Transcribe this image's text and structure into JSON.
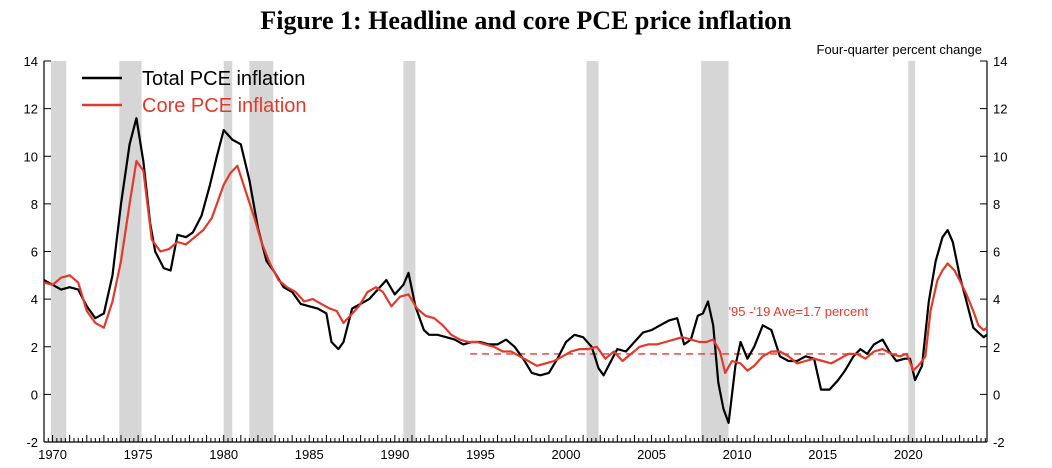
{
  "chart_data": {
    "type": "line",
    "title": "Figure 1:  Headline and core PCE price inflation",
    "subtitle": "Four-quarter percent change",
    "ylim": [
      -2,
      14
    ],
    "yticks": [
      -2,
      0,
      2,
      4,
      6,
      8,
      10,
      12,
      14
    ],
    "xlim": [
      1969.5,
      2024.6
    ],
    "xticks": [
      1970,
      1975,
      1980,
      1985,
      1990,
      1995,
      2000,
      2005,
      2010,
      2015,
      2020
    ],
    "legend": {
      "placement": "top-left"
    },
    "recessions": [
      [
        1969.9,
        1970.8
      ],
      [
        1973.9,
        1975.2
      ],
      [
        1980.0,
        1980.5
      ],
      [
        1981.5,
        1982.9
      ],
      [
        1990.5,
        1991.2
      ],
      [
        2001.2,
        2001.9
      ],
      [
        2007.9,
        2009.5
      ],
      [
        2020.0,
        2020.4
      ]
    ],
    "series": [
      {
        "name": "Total PCE inflation",
        "color": "#000000",
        "points": [
          [
            1969.5,
            4.8
          ],
          [
            1970.0,
            4.6
          ],
          [
            1970.5,
            4.4
          ],
          [
            1971.0,
            4.5
          ],
          [
            1971.5,
            4.4
          ],
          [
            1972.0,
            3.7
          ],
          [
            1972.5,
            3.2
          ],
          [
            1973.0,
            3.4
          ],
          [
            1973.5,
            5.0
          ],
          [
            1974.0,
            8.0
          ],
          [
            1974.5,
            10.5
          ],
          [
            1974.9,
            11.6
          ],
          [
            1975.3,
            9.8
          ],
          [
            1975.7,
            7.2
          ],
          [
            1976.0,
            6.0
          ],
          [
            1976.5,
            5.3
          ],
          [
            1976.9,
            5.2
          ],
          [
            1977.3,
            6.7
          ],
          [
            1977.8,
            6.6
          ],
          [
            1978.2,
            6.8
          ],
          [
            1978.7,
            7.5
          ],
          [
            1979.2,
            8.8
          ],
          [
            1979.6,
            10.0
          ],
          [
            1980.0,
            11.1
          ],
          [
            1980.5,
            10.7
          ],
          [
            1981.0,
            10.5
          ],
          [
            1981.5,
            9.0
          ],
          [
            1982.0,
            7.0
          ],
          [
            1982.5,
            5.6
          ],
          [
            1983.0,
            5.1
          ],
          [
            1983.5,
            4.5
          ],
          [
            1984.0,
            4.3
          ],
          [
            1984.5,
            3.8
          ],
          [
            1985.0,
            3.7
          ],
          [
            1985.5,
            3.6
          ],
          [
            1986.0,
            3.4
          ],
          [
            1986.3,
            2.2
          ],
          [
            1986.7,
            1.9
          ],
          [
            1987.0,
            2.2
          ],
          [
            1987.5,
            3.6
          ],
          [
            1988.0,
            3.8
          ],
          [
            1988.5,
            4.0
          ],
          [
            1989.0,
            4.4
          ],
          [
            1989.5,
            4.8
          ],
          [
            1990.0,
            4.2
          ],
          [
            1990.5,
            4.6
          ],
          [
            1990.8,
            5.1
          ],
          [
            1991.2,
            3.7
          ],
          [
            1991.7,
            2.7
          ],
          [
            1992.0,
            2.5
          ],
          [
            1992.5,
            2.5
          ],
          [
            1993.0,
            2.4
          ],
          [
            1993.5,
            2.3
          ],
          [
            1994.0,
            2.1
          ],
          [
            1994.5,
            2.2
          ],
          [
            1995.0,
            2.2
          ],
          [
            1995.5,
            2.1
          ],
          [
            1996.0,
            2.1
          ],
          [
            1996.5,
            2.3
          ],
          [
            1997.0,
            2.0
          ],
          [
            1997.5,
            1.5
          ],
          [
            1998.0,
            0.9
          ],
          [
            1998.5,
            0.8
          ],
          [
            1999.0,
            0.9
          ],
          [
            1999.5,
            1.5
          ],
          [
            2000.0,
            2.2
          ],
          [
            2000.5,
            2.5
          ],
          [
            2001.0,
            2.4
          ],
          [
            2001.5,
            2.0
          ],
          [
            2001.9,
            1.1
          ],
          [
            2002.2,
            0.8
          ],
          [
            2002.7,
            1.5
          ],
          [
            2003.0,
            1.9
          ],
          [
            2003.5,
            1.8
          ],
          [
            2004.0,
            2.2
          ],
          [
            2004.5,
            2.6
          ],
          [
            2005.0,
            2.7
          ],
          [
            2005.5,
            2.9
          ],
          [
            2006.0,
            3.1
          ],
          [
            2006.5,
            3.2
          ],
          [
            2006.9,
            2.1
          ],
          [
            2007.3,
            2.3
          ],
          [
            2007.7,
            3.3
          ],
          [
            2008.0,
            3.4
          ],
          [
            2008.3,
            3.9
          ],
          [
            2008.6,
            2.9
          ],
          [
            2008.9,
            0.5
          ],
          [
            2009.2,
            -0.6
          ],
          [
            2009.5,
            -1.2
          ],
          [
            2009.9,
            1.2
          ],
          [
            2010.2,
            2.2
          ],
          [
            2010.6,
            1.5
          ],
          [
            2011.0,
            2.0
          ],
          [
            2011.5,
            2.9
          ],
          [
            2012.0,
            2.7
          ],
          [
            2012.5,
            1.6
          ],
          [
            2013.0,
            1.4
          ],
          [
            2013.5,
            1.4
          ],
          [
            2014.0,
            1.6
          ],
          [
            2014.5,
            1.5
          ],
          [
            2014.9,
            0.2
          ],
          [
            2015.4,
            0.2
          ],
          [
            2015.9,
            0.6
          ],
          [
            2016.3,
            1.0
          ],
          [
            2016.8,
            1.6
          ],
          [
            2017.2,
            1.9
          ],
          [
            2017.6,
            1.7
          ],
          [
            2018.0,
            2.1
          ],
          [
            2018.5,
            2.3
          ],
          [
            2018.9,
            1.8
          ],
          [
            2019.3,
            1.4
          ],
          [
            2019.8,
            1.5
          ],
          [
            2020.1,
            1.5
          ],
          [
            2020.4,
            0.6
          ],
          [
            2020.8,
            1.2
          ],
          [
            2021.2,
            3.9
          ],
          [
            2021.6,
            5.6
          ],
          [
            2022.0,
            6.6
          ],
          [
            2022.3,
            6.9
          ],
          [
            2022.6,
            6.4
          ],
          [
            2023.0,
            5.0
          ],
          [
            2023.4,
            3.9
          ],
          [
            2023.8,
            2.8
          ],
          [
            2024.1,
            2.6
          ],
          [
            2024.4,
            2.4
          ],
          [
            2024.6,
            2.5
          ]
        ]
      },
      {
        "name": "Core PCE inflation",
        "color": "#e03a2c",
        "points": [
          [
            1969.5,
            4.7
          ],
          [
            1970.0,
            4.6
          ],
          [
            1970.5,
            4.9
          ],
          [
            1971.0,
            5.0
          ],
          [
            1971.5,
            4.7
          ],
          [
            1972.0,
            3.5
          ],
          [
            1972.5,
            3.0
          ],
          [
            1973.0,
            2.8
          ],
          [
            1973.5,
            3.9
          ],
          [
            1974.0,
            5.6
          ],
          [
            1974.5,
            8.0
          ],
          [
            1974.9,
            9.8
          ],
          [
            1975.3,
            9.4
          ],
          [
            1975.8,
            6.5
          ],
          [
            1976.3,
            6.0
          ],
          [
            1976.8,
            6.1
          ],
          [
            1977.3,
            6.4
          ],
          [
            1977.8,
            6.3
          ],
          [
            1978.3,
            6.6
          ],
          [
            1978.8,
            6.9
          ],
          [
            1979.3,
            7.4
          ],
          [
            1979.7,
            8.2
          ],
          [
            1980.0,
            8.8
          ],
          [
            1980.4,
            9.3
          ],
          [
            1980.8,
            9.6
          ],
          [
            1981.3,
            8.5
          ],
          [
            1981.8,
            7.4
          ],
          [
            1982.2,
            6.4
          ],
          [
            1982.7,
            5.5
          ],
          [
            1983.2,
            4.8
          ],
          [
            1983.7,
            4.5
          ],
          [
            1984.2,
            4.3
          ],
          [
            1984.7,
            3.9
          ],
          [
            1985.2,
            4.0
          ],
          [
            1985.7,
            3.8
          ],
          [
            1986.2,
            3.6
          ],
          [
            1986.6,
            3.5
          ],
          [
            1987.0,
            3.0
          ],
          [
            1987.4,
            3.3
          ],
          [
            1987.9,
            3.7
          ],
          [
            1988.4,
            4.3
          ],
          [
            1988.9,
            4.5
          ],
          [
            1989.3,
            4.3
          ],
          [
            1989.8,
            3.7
          ],
          [
            1990.3,
            4.1
          ],
          [
            1990.8,
            4.2
          ],
          [
            1991.3,
            3.6
          ],
          [
            1991.8,
            3.3
          ],
          [
            1992.3,
            3.2
          ],
          [
            1992.8,
            2.9
          ],
          [
            1993.3,
            2.5
          ],
          [
            1993.8,
            2.3
          ],
          [
            1994.3,
            2.2
          ],
          [
            1994.8,
            2.2
          ],
          [
            1995.3,
            2.1
          ],
          [
            1995.8,
            2.0
          ],
          [
            1996.3,
            1.8
          ],
          [
            1996.8,
            1.8
          ],
          [
            1997.3,
            1.6
          ],
          [
            1997.8,
            1.4
          ],
          [
            1998.3,
            1.2
          ],
          [
            1998.8,
            1.3
          ],
          [
            1999.3,
            1.4
          ],
          [
            1999.8,
            1.6
          ],
          [
            2000.3,
            1.8
          ],
          [
            2000.8,
            1.9
          ],
          [
            2001.3,
            1.9
          ],
          [
            2001.8,
            2.0
          ],
          [
            2002.3,
            1.5
          ],
          [
            2002.8,
            1.8
          ],
          [
            2003.3,
            1.4
          ],
          [
            2003.8,
            1.7
          ],
          [
            2004.3,
            2.0
          ],
          [
            2004.8,
            2.1
          ],
          [
            2005.3,
            2.1
          ],
          [
            2005.8,
            2.2
          ],
          [
            2006.3,
            2.3
          ],
          [
            2006.8,
            2.4
          ],
          [
            2007.3,
            2.3
          ],
          [
            2007.8,
            2.2
          ],
          [
            2008.2,
            2.2
          ],
          [
            2008.6,
            2.3
          ],
          [
            2009.0,
            1.8
          ],
          [
            2009.3,
            0.9
          ],
          [
            2009.7,
            1.4
          ],
          [
            2010.2,
            1.3
          ],
          [
            2010.6,
            1.0
          ],
          [
            2011.0,
            1.2
          ],
          [
            2011.5,
            1.6
          ],
          [
            2012.0,
            1.8
          ],
          [
            2012.5,
            1.8
          ],
          [
            2013.0,
            1.6
          ],
          [
            2013.5,
            1.3
          ],
          [
            2014.0,
            1.4
          ],
          [
            2014.5,
            1.5
          ],
          [
            2015.0,
            1.4
          ],
          [
            2015.5,
            1.3
          ],
          [
            2016.0,
            1.5
          ],
          [
            2016.5,
            1.7
          ],
          [
            2017.0,
            1.7
          ],
          [
            2017.5,
            1.5
          ],
          [
            2018.0,
            1.8
          ],
          [
            2018.5,
            1.9
          ],
          [
            2019.0,
            1.7
          ],
          [
            2019.5,
            1.6
          ],
          [
            2019.9,
            1.7
          ],
          [
            2020.3,
            1.0
          ],
          [
            2020.7,
            1.3
          ],
          [
            2021.0,
            1.6
          ],
          [
            2021.3,
            3.5
          ],
          [
            2021.7,
            4.8
          ],
          [
            2022.0,
            5.2
          ],
          [
            2022.3,
            5.5
          ],
          [
            2022.7,
            5.2
          ],
          [
            2023.0,
            4.8
          ],
          [
            2023.4,
            4.2
          ],
          [
            2023.8,
            3.5
          ],
          [
            2024.1,
            2.9
          ],
          [
            2024.4,
            2.7
          ],
          [
            2024.6,
            2.8
          ]
        ]
      }
    ],
    "reference_line": {
      "from": 1994.4,
      "to": 2020.0,
      "value": 1.7,
      "color": "#e03a2c"
    },
    "annotation": {
      "text": "'95 -'19 Ave=1.7 percent",
      "x": 2009.5,
      "y": 3.5,
      "color": "#e03a2c"
    }
  }
}
